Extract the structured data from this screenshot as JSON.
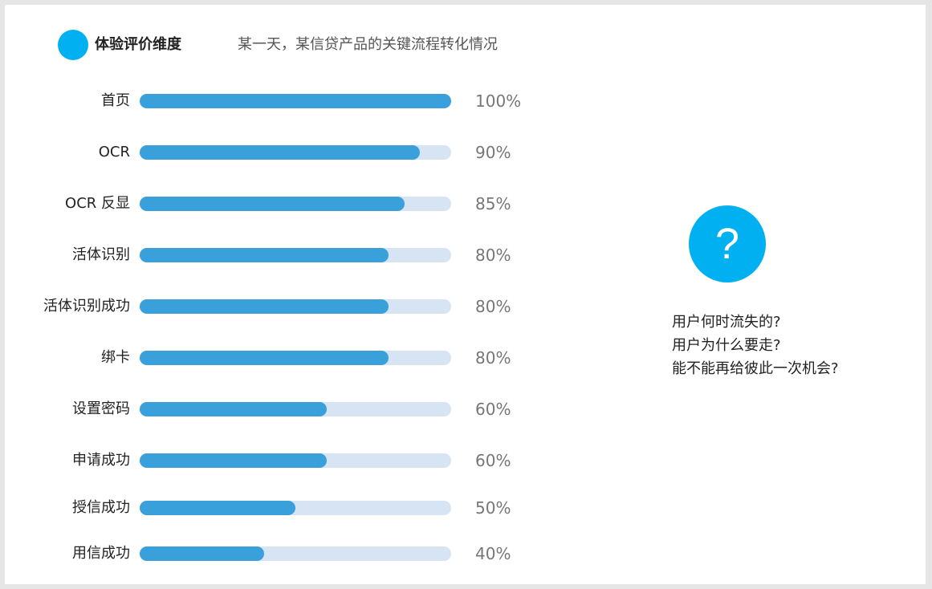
{
  "header": {
    "title": "体验评价维度",
    "subtitle": "某一天，某信贷产品的关键流程转化情况"
  },
  "chart_data": {
    "type": "bar",
    "orientation": "horizontal",
    "title": "某一天，某信贷产品的关键流程转化情况",
    "categories": [
      "首页",
      "OCR",
      "OCR 反显",
      "活体识别",
      "活体识别成功",
      "绑卡",
      "设置密码",
      "申请成功",
      "授信成功",
      "用信成功"
    ],
    "values": [
      100,
      90,
      85,
      80,
      80,
      80,
      60,
      60,
      50,
      40
    ],
    "value_labels": [
      "100%",
      "90%",
      "85%",
      "80%",
      "80%",
      "80%",
      "60%",
      "60%",
      "50%",
      "40%"
    ],
    "xlim": [
      0,
      100
    ],
    "grid": false,
    "colors": {
      "fill": "#3aa0dc",
      "track": "#d6e4f3"
    }
  },
  "aside": {
    "icon": "question-mark-icon",
    "icon_glyph": "?",
    "accent_color": "#00b0f0",
    "questions": [
      "用户何时流失的?",
      "用户为什么要走?",
      "能不能再给彼此一次机会?"
    ]
  }
}
